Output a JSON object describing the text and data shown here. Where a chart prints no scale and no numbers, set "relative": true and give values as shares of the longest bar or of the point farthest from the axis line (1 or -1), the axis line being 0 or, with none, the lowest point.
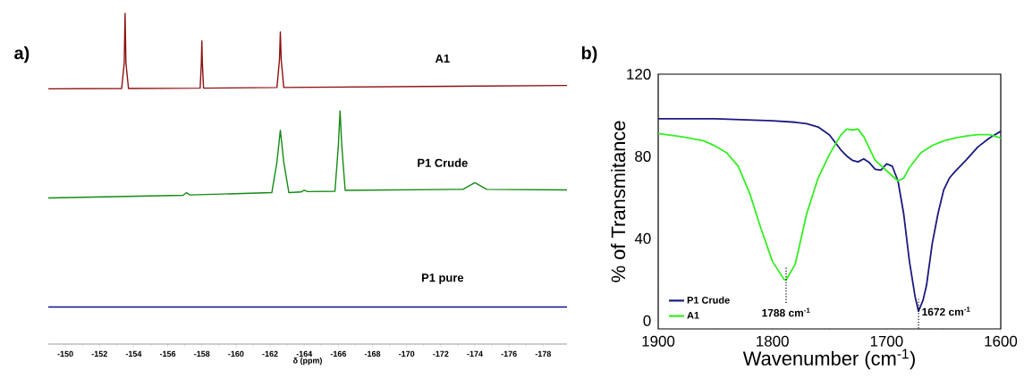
{
  "chart_data": [
    {
      "type": "line",
      "title": "a)",
      "xlabel": "δ (ppm)",
      "relative": true,
      "legend": false,
      "grid": false,
      "xlim": [
        -149,
        -179.4
      ],
      "xticks": [
        -150,
        -152,
        -154,
        -156,
        -158,
        -160,
        -162,
        -164,
        -166,
        -168,
        -170,
        -172,
        -174,
        -176,
        -178
      ],
      "series": [
        {
          "name": "A1",
          "color": "#8b1010",
          "x": [
            -149,
            -153.3,
            -153.45,
            -153.5,
            -153.55,
            -153.7,
            -157.9,
            -157.97,
            -158.0,
            -158.03,
            -158.1,
            -162.4,
            -162.55,
            -162.6,
            -162.65,
            -162.8,
            -179.4
          ],
          "values": [
            0.772,
            0.773,
            0.85,
            1.0,
            0.85,
            0.773,
            0.774,
            0.85,
            0.917,
            0.85,
            0.774,
            0.776,
            0.86,
            0.944,
            0.86,
            0.776,
            0.782
          ]
        },
        {
          "name": "P1 Crude",
          "color": "#138a13",
          "x": [
            -149,
            -156.9,
            -157.1,
            -157.3,
            -162.1,
            -162.4,
            -162.6,
            -162.8,
            -163.1,
            -163.8,
            -164.0,
            -164.2,
            -165.8,
            -166.0,
            -166.1,
            -166.2,
            -166.4,
            -173.3,
            -174.0,
            -174.7,
            -179.4
          ],
          "values": [
            0.442,
            0.45,
            0.458,
            0.451,
            0.458,
            0.55,
            0.647,
            0.55,
            0.458,
            0.46,
            0.465,
            0.461,
            0.462,
            0.6,
            0.705,
            0.6,
            0.465,
            0.468,
            0.488,
            0.468,
            0.466
          ]
        },
        {
          "name": "P1 pure",
          "color": "#10108c",
          "x": [
            -149,
            -179.4
          ],
          "values": [
            0.112,
            0.112
          ]
        }
      ]
    },
    {
      "type": "line",
      "title": "b)",
      "xlabel": "Wavenumber (cm$^{-1}$)",
      "ylabel": "% of Transmitance",
      "legend": "bottom left",
      "grid": false,
      "xlim": [
        1900,
        1600
      ],
      "xticks": [
        1900,
        1800,
        1700,
        1600
      ],
      "ylim": [
        -4,
        120
      ],
      "yticks": [
        0,
        40,
        80,
        120
      ],
      "series": [
        {
          "name": "P1 Crude",
          "color": "#1a1a80",
          "x": [
            1900,
            1850,
            1800,
            1780,
            1770,
            1760,
            1750,
            1740,
            1735,
            1730,
            1725,
            1720,
            1715,
            1710,
            1705,
            1700,
            1695,
            1690,
            1685,
            1680,
            1675,
            1672,
            1668,
            1665,
            1660,
            1655,
            1650,
            1645,
            1640,
            1630,
            1620,
            1610,
            1600
          ],
          "values": [
            98.3,
            98.3,
            97.3,
            96.6,
            95.9,
            94.3,
            90.4,
            83.1,
            80.2,
            78.1,
            77.3,
            78.8,
            76.9,
            73.7,
            73.3,
            76.3,
            75.2,
            68.0,
            52.0,
            28.9,
            11.6,
            4.6,
            10.1,
            17.3,
            37.6,
            52.0,
            63.6,
            69.4,
            72.6,
            78.4,
            84.6,
            88.9,
            92.2
          ]
        },
        {
          "name": "A1",
          "color": "#33ee22",
          "x": [
            1900,
            1880,
            1860,
            1850,
            1840,
            1830,
            1820,
            1810,
            1800,
            1790,
            1788,
            1780,
            1770,
            1760,
            1750,
            1740,
            1735,
            1730,
            1725,
            1720,
            1710,
            1700,
            1690,
            1685,
            1680,
            1670,
            1660,
            1650,
            1640,
            1630,
            1620,
            1610,
            1600
          ],
          "values": [
            91.1,
            89.6,
            87.5,
            85.0,
            81.7,
            75.2,
            62.2,
            44.8,
            28.9,
            20.2,
            19.8,
            27.5,
            52.0,
            69.4,
            81.0,
            90.4,
            93.3,
            92.8,
            93.3,
            89.6,
            78.1,
            73.0,
            68.0,
            69.4,
            74.5,
            81.7,
            85.3,
            87.5,
            88.9,
            89.9,
            90.6,
            90.6,
            88.9
          ]
        }
      ],
      "annotations": [
        {
          "text": "1788 cm$^{-1}$",
          "x": 1788,
          "y": 19.8
        },
        {
          "text": "1672 cm$^{-1}$",
          "x": 1672,
          "y": 4.6
        }
      ]
    }
  ]
}
